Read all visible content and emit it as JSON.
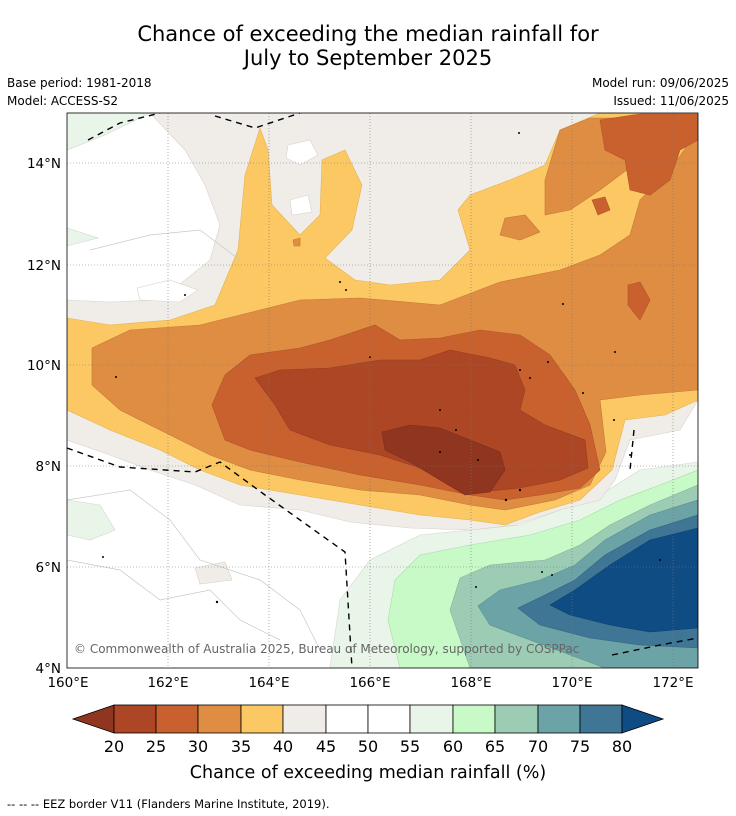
{
  "title_line1": "Chance of exceeding the median rainfall for",
  "title_line2": "July to September 2025",
  "meta": {
    "base_period": "Base period: 1981-2018",
    "model": "Model: ACCESS-S2",
    "model_run": "Model run: 09/06/2025",
    "issued": "Issued: 11/06/2025"
  },
  "copyright": "© Commonwealth of Australia 2025, Bureau of Meteorology, supported by COSPPac",
  "footer": "-- -- -- EEZ border V11 (Flanders Marine Institute, 2019).",
  "map": {
    "lon_labels": [
      "160°E",
      "162°E",
      "164°E",
      "166°E",
      "168°E",
      "170°E",
      "172°E"
    ],
    "lat_labels": [
      "4°N",
      "6°N",
      "8°N",
      "10°N",
      "12°N",
      "14°N"
    ]
  },
  "colorbar": {
    "title": "Chance of exceeding median rainfall (%)",
    "ticks": [
      "20",
      "25",
      "30",
      "35",
      "40",
      "45",
      "50",
      "55",
      "60",
      "65",
      "70",
      "75",
      "80"
    ],
    "colors": {
      "lt20": "#8f3520",
      "c20_25": "#ac4625",
      "c25_30": "#c9612e",
      "c30_35": "#de8d42",
      "c35_40": "#fbc864",
      "c40_45": "#f0ece8",
      "c45_50": "#ffffff",
      "c50_55": "#ffffff",
      "c55_60": "#eaf5ea",
      "c60_65": "#c8fac8",
      "c65_70": "#9ccdb4",
      "c70_75": "#6ba3a6",
      "c75_80": "#3f7695",
      "gt80": "#104c84"
    }
  }
}
